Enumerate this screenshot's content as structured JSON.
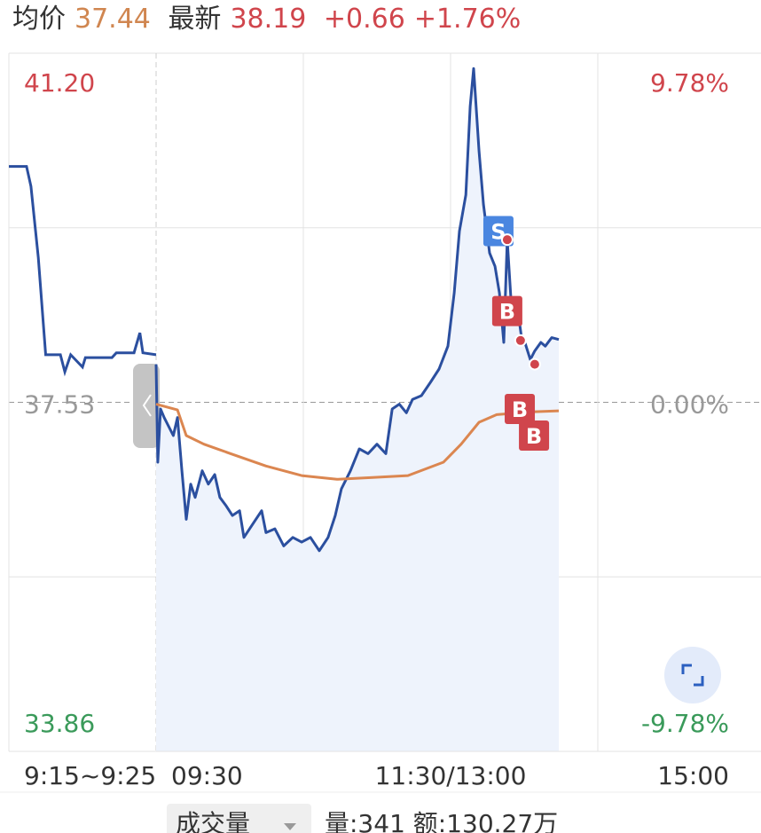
{
  "header": {
    "avg_label": "均价",
    "avg_price": "37.44",
    "last_label": "最新",
    "last_price": "38.19",
    "change": "+0.66",
    "change_pct": "+1.76%"
  },
  "chart_data": {
    "type": "line",
    "premarket": {
      "label": "9:15~9:25",
      "xlim": [
        0,
        10
      ],
      "color": "#2b4f9f",
      "x": [
        0,
        1.2,
        1.5,
        2.0,
        2.5,
        3.5,
        3.8,
        4.2,
        5,
        5.2,
        7,
        7.3,
        8.5,
        8.9,
        9.1,
        10
      ],
      "values": [
        40.01,
        40.01,
        39.8,
        39.05,
        38.03,
        38.03,
        37.85,
        38.03,
        37.9,
        38.0,
        38.0,
        38.05,
        38.05,
        38.26,
        38.05,
        38.03
      ]
    },
    "xlim": [
      0,
      240
    ],
    "xticks": [
      {
        "value": 0,
        "label": "09:30"
      },
      {
        "value": 120,
        "label": "11:30/13:00"
      },
      {
        "value": 240,
        "label": "15:00"
      }
    ],
    "xgrid": [
      60,
      180
    ],
    "ylim": [
      33.86,
      41.2
    ],
    "yticks": [
      {
        "value": 41.2,
        "label": "41.20"
      },
      {
        "value": 37.53,
        "label": "37.53"
      },
      {
        "value": 33.86,
        "label": "33.86"
      }
    ],
    "ygrid": [
      39.365,
      35.695
    ],
    "y2lim": [
      -9.78,
      9.78
    ],
    "y2ticks": [
      {
        "value": 9.78,
        "label": "9.78%"
      },
      {
        "value": 0,
        "label": "0.00%"
      },
      {
        "value": -9.78,
        "label": "-9.78%"
      }
    ],
    "tick_colors": [
      "#d0454c",
      "#999999",
      "#3a9a5a"
    ],
    "series": [
      {
        "color": "#2b4f9f",
        "fill": "#eef3fc",
        "x": [
          0,
          0.7,
          1.8,
          3.3,
          7,
          8.7,
          10.5,
          12.3,
          14.1,
          15.9,
          18.8,
          21.3,
          23.9,
          26,
          28.6,
          31.1,
          34,
          35.8,
          39.4,
          43,
          44.8,
          48.4,
          52,
          55.7,
          59.3,
          62.9,
          66.5,
          70.1,
          73,
          75.5,
          79.2,
          82.8,
          86.4,
          90,
          93.6,
          96.2,
          99.1,
          102,
          104.5,
          108.1,
          111.8,
          115.3,
          118.9,
          121.5,
          123.6,
          126.2,
          128,
          129.4,
          131.6,
          133.4,
          135.9,
          138.1,
          139.9,
          141.7,
          143.1,
          144.9,
          146.7,
          148.9,
          150.3,
          152.5,
          154.3,
          156.8,
          158.6,
          161.2,
          164.1
        ],
        "values": [
          37.93,
          36.9,
          37.46,
          37.37,
          37.18,
          37.37,
          36.81,
          36.3,
          36.67,
          36.53,
          36.81,
          36.67,
          36.77,
          36.53,
          36.44,
          36.34,
          36.39,
          36.11,
          36.25,
          36.39,
          36.16,
          36.2,
          36.02,
          36.11,
          36.06,
          36.11,
          35.97,
          36.11,
          36.34,
          36.62,
          36.81,
          37.04,
          36.99,
          37.09,
          36.99,
          37.46,
          37.51,
          37.42,
          37.56,
          37.6,
          37.74,
          37.88,
          38.12,
          38.68,
          39.33,
          39.71,
          40.64,
          41.04,
          40.17,
          39.61,
          39.1,
          38.96,
          38.68,
          38.16,
          39.24,
          38.49,
          38.63,
          38.21,
          38.16,
          37.98,
          38.07,
          38.16,
          38.12,
          38.21,
          38.19
        ]
      },
      {
        "color": "#db8650",
        "x": [
          0,
          8.7,
          12.3,
          19.5,
          30.4,
          44.8,
          59.3,
          73.7,
          88.2,
          102.6,
          117.1,
          124.3,
          131.6,
          138.8,
          153.2,
          164.1
        ],
        "values": [
          37.51,
          37.45,
          37.18,
          37.09,
          36.99,
          36.86,
          36.76,
          36.72,
          36.74,
          36.76,
          36.9,
          37.09,
          37.32,
          37.4,
          37.43,
          37.44
        ]
      }
    ],
    "points": [
      {
        "x": 143.1,
        "y": 39.24
      },
      {
        "x": 148.5,
        "y": 38.18
      },
      {
        "x": 154.3,
        "y": 37.93
      }
    ],
    "markers": [
      {
        "label": "S",
        "x": 139.5,
        "y": 39.33,
        "color": "#4a86e0"
      },
      {
        "label": "B",
        "x": 143.1,
        "y": 38.49,
        "color": "#d0454c"
      },
      {
        "label": "B",
        "x": 148.2,
        "y": 37.46,
        "color": "#d0454c"
      },
      {
        "label": "B",
        "x": 154,
        "y": 37.18,
        "color": "#d0454c"
      }
    ]
  },
  "footer": {
    "volume_menu": "成交量",
    "volume_info": "量:341 额:130.27万"
  }
}
